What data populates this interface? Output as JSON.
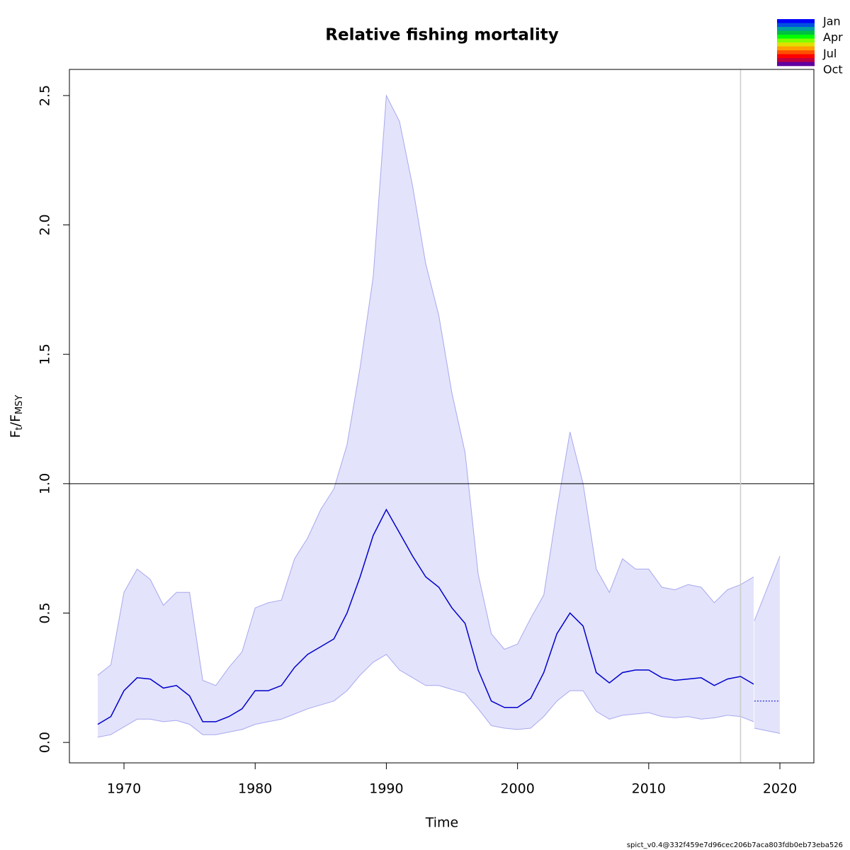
{
  "chart_data": {
    "type": "line",
    "title": "Relative fishing mortality",
    "x_label": "Time",
    "y_label": {
      "main1": "F",
      "sub1": "t",
      "main2": "/F",
      "sub2": "MSY"
    },
    "footer": "spict_v0.4@332f459e7d96cec206b7aca803fdb0eb73eba526",
    "xlim": [
      1965.84,
      2022.59
    ],
    "ylim": [
      -0.079,
      2.601
    ],
    "xticks": [
      1970,
      1980,
      1990,
      2000,
      2010,
      2020
    ],
    "yticks": [
      {
        "value": 0,
        "label": "0.0"
      },
      0.5,
      {
        "value": 1,
        "label": "1.0"
      },
      1.5,
      {
        "value": 2,
        "label": "2.0"
      },
      2.5
    ],
    "hline": 1,
    "vline": 2017,
    "x": [
      1968,
      1969,
      1970,
      1971,
      1972,
      1973,
      1974,
      1975,
      1976,
      1977,
      1978,
      1979,
      1980,
      1981,
      1982,
      1983,
      1984,
      1985,
      1986,
      1987,
      1988,
      1989,
      1990,
      1991,
      1992,
      1993,
      1994,
      1995,
      1996,
      1997,
      1998,
      1999,
      2000,
      2001,
      2002,
      2003,
      2004,
      2005,
      2006,
      2007,
      2008,
      2009,
      2010,
      2011,
      2012,
      2013,
      2014,
      2015,
      2016,
      2017,
      2018
    ],
    "estimate": {
      "color": "#0000cd",
      "values": [
        0.07,
        0.1,
        0.2,
        0.25,
        0.245,
        0.21,
        0.22,
        0.18,
        0.08,
        0.08,
        0.1,
        0.13,
        0.2,
        0.2,
        0.22,
        0.29,
        0.34,
        0.37,
        0.4,
        0.5,
        0.64,
        0.8,
        0.9,
        0.81,
        0.72,
        0.64,
        0.6,
        0.52,
        0.46,
        0.28,
        0.16,
        0.135,
        0.135,
        0.17,
        0.27,
        0.42,
        0.5,
        0.45,
        0.27,
        0.23,
        0.27,
        0.28,
        0.28,
        0.25,
        0.24,
        0.245,
        0.25,
        0.22,
        0.245,
        0.255,
        0.225
      ]
    },
    "upper": {
      "values": [
        0.26,
        0.3,
        0.58,
        0.67,
        0.63,
        0.53,
        0.58,
        0.58,
        0.24,
        0.22,
        0.29,
        0.35,
        0.52,
        0.54,
        0.55,
        0.71,
        0.79,
        0.9,
        0.98,
        1.15,
        1.45,
        1.8,
        2.5,
        2.4,
        2.15,
        1.85,
        1.65,
        1.35,
        1.12,
        0.65,
        0.42,
        0.36,
        0.38,
        0.48,
        0.57,
        0.9,
        1.2,
        1.0,
        0.67,
        0.58,
        0.71,
        0.67,
        0.67,
        0.6,
        0.59,
        0.61,
        0.6,
        0.54,
        0.59,
        0.61,
        0.64
      ]
    },
    "lower": {
      "values": [
        0.02,
        0.03,
        0.06,
        0.09,
        0.09,
        0.08,
        0.085,
        0.07,
        0.03,
        0.03,
        0.04,
        0.05,
        0.07,
        0.08,
        0.09,
        0.11,
        0.13,
        0.145,
        0.16,
        0.2,
        0.26,
        0.31,
        0.34,
        0.28,
        0.25,
        0.22,
        0.22,
        0.205,
        0.19,
        0.13,
        0.065,
        0.055,
        0.05,
        0.055,
        0.1,
        0.16,
        0.2,
        0.2,
        0.12,
        0.09,
        0.105,
        0.11,
        0.115,
        0.1,
        0.095,
        0.1,
        0.09,
        0.095,
        0.105,
        0.1,
        0.08
      ]
    },
    "forecast": {
      "x": [
        2018.05,
        2020
      ],
      "estimate": [
        0.16,
        0.16
      ],
      "upper": [
        0.47,
        0.72
      ],
      "lower": [
        0.055,
        0.035
      ]
    },
    "band_color": "#e3e3fb",
    "band_edge_color": "#a8a8f0",
    "legend": {
      "labels": [
        "Jan",
        "Apr",
        "Jul",
        "Oct"
      ],
      "label_months": [
        0,
        3,
        6,
        9
      ],
      "colors": [
        "#0000ff",
        "#0050e0",
        "#00a0a0",
        "#00c040",
        "#00ff00",
        "#80ff00",
        "#e0e000",
        "#ffa000",
        "#ff5000",
        "#ff0000",
        "#c00040",
        "#6000a0"
      ]
    }
  }
}
